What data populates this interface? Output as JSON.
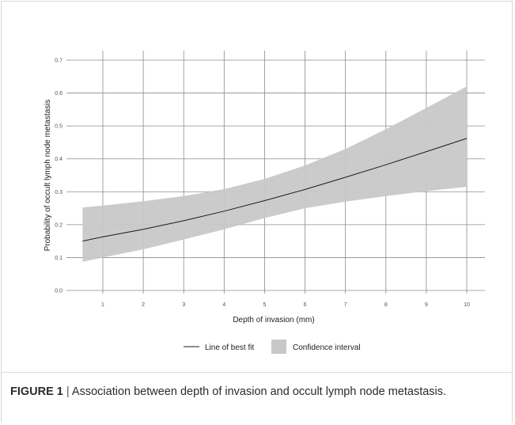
{
  "chart_data": {
    "type": "line",
    "title": "",
    "xlabel": "Depth of invasion (mm)",
    "ylabel": "Probability of occult lymph node metastasis",
    "xlim": [
      0.5,
      10
    ],
    "ylim": [
      0,
      0.7
    ],
    "xticks": [
      1,
      2,
      3,
      4,
      5,
      6,
      7,
      8,
      9,
      10
    ],
    "yticks": [
      0.0,
      0.1,
      0.2,
      0.3,
      0.4,
      0.5,
      0.6,
      0.7
    ],
    "ytick_labels": [
      "0.0",
      "0.1",
      "0.2",
      "0.3",
      "0.4",
      "0.5",
      "0.6",
      "0.7"
    ],
    "grid": true,
    "legend_position": "bottom-center",
    "series": [
      {
        "name": "Line of best fit",
        "color": "#1a1a1a",
        "x": [
          0.5,
          1,
          2,
          3,
          4,
          5,
          6,
          7,
          8,
          9,
          10
        ],
        "y": [
          0.15,
          0.163,
          0.186,
          0.212,
          0.241,
          0.273,
          0.307,
          0.344,
          0.382,
          0.422,
          0.462
        ]
      },
      {
        "name": "Confidence interval",
        "color": "#c8c8c8",
        "x": [
          0.5,
          1,
          2,
          3,
          4,
          5,
          6,
          7,
          8,
          9,
          10
        ],
        "lower": [
          0.087,
          0.1,
          0.125,
          0.155,
          0.186,
          0.22,
          0.25,
          0.27,
          0.287,
          0.302,
          0.315
        ],
        "upper": [
          0.252,
          0.258,
          0.271,
          0.287,
          0.308,
          0.339,
          0.38,
          0.43,
          0.49,
          0.555,
          0.62
        ]
      }
    ]
  },
  "caption": {
    "label": "FIGURE 1",
    "separator": "|",
    "text": "Association between depth of invasion and occult lymph node metastasis."
  }
}
